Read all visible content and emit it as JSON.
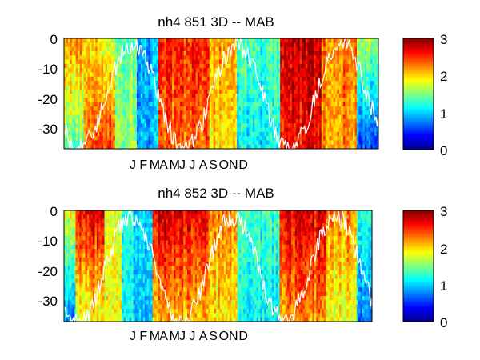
{
  "chart_data": [
    {
      "type": "heatmap",
      "title": "nh4  851 3D   -- MAB",
      "xlabel": "",
      "ylabel": "",
      "ylim": [
        -37,
        0
      ],
      "yticks": [
        0,
        -10,
        -20,
        -30
      ],
      "xtick_labels": [
        "J",
        "F",
        "M",
        "A",
        "M",
        "J",
        "J",
        "A",
        "S",
        "O",
        "N",
        "D"
      ],
      "colorbar": {
        "ticks": [
          0,
          1,
          2,
          3
        ],
        "clim": [
          0,
          3
        ],
        "colormap": "jet"
      },
      "overlay": "mixed-layer-depth line (white)",
      "value_blocks": [
        {
          "t0": 0.0,
          "t1": 0.06,
          "surface": 2.2,
          "deep": 1.4
        },
        {
          "t0": 0.06,
          "t1": 0.11,
          "surface": 2.0,
          "deep": 2.4
        },
        {
          "t0": 0.11,
          "t1": 0.16,
          "surface": 1.8,
          "deep": 2.5
        },
        {
          "t0": 0.16,
          "t1": 0.23,
          "surface": 1.4,
          "deep": 1.6
        },
        {
          "t0": 0.23,
          "t1": 0.3,
          "surface": 0.9,
          "deep": 0.9
        },
        {
          "t0": 0.3,
          "t1": 0.46,
          "surface": 2.5,
          "deep": 2.3
        },
        {
          "t0": 0.46,
          "t1": 0.55,
          "surface": 2.2,
          "deep": 2.0
        },
        {
          "t0": 0.55,
          "t1": 0.69,
          "surface": 1.3,
          "deep": 1.1
        },
        {
          "t0": 0.69,
          "t1": 0.82,
          "surface": 2.8,
          "deep": 2.6
        },
        {
          "t0": 0.82,
          "t1": 0.93,
          "surface": 2.3,
          "deep": 2.2
        },
        {
          "t0": 0.93,
          "t1": 1.0,
          "surface": 1.6,
          "deep": 0.6
        }
      ]
    },
    {
      "type": "heatmap",
      "title": "nh4  852 3D   -- MAB",
      "xlabel": "",
      "ylabel": "",
      "ylim": [
        -37,
        0
      ],
      "yticks": [
        0,
        -10,
        -20,
        -30
      ],
      "xtick_labels": [
        "J",
        "F",
        "M",
        "A",
        "M",
        "J",
        "J",
        "A",
        "S",
        "O",
        "N",
        "D"
      ],
      "colorbar": {
        "ticks": [
          0,
          1,
          2,
          3
        ],
        "clim": [
          0,
          3
        ],
        "colormap": "jet"
      },
      "overlay": "mixed-layer-depth line (white)",
      "value_blocks": [
        {
          "t0": 0.0,
          "t1": 0.04,
          "surface": 1.8,
          "deep": 0.8
        },
        {
          "t0": 0.04,
          "t1": 0.13,
          "surface": 2.7,
          "deep": 1.8
        },
        {
          "t0": 0.13,
          "t1": 0.19,
          "surface": 1.8,
          "deep": 1.9
        },
        {
          "t0": 0.19,
          "t1": 0.29,
          "surface": 1.1,
          "deep": 1.0
        },
        {
          "t0": 0.29,
          "t1": 0.47,
          "surface": 2.7,
          "deep": 2.1
        },
        {
          "t0": 0.47,
          "t1": 0.56,
          "surface": 2.2,
          "deep": 1.9
        },
        {
          "t0": 0.56,
          "t1": 0.7,
          "surface": 1.3,
          "deep": 1.1
        },
        {
          "t0": 0.7,
          "t1": 0.85,
          "surface": 2.7,
          "deep": 2.2
        },
        {
          "t0": 0.85,
          "t1": 0.95,
          "surface": 2.2,
          "deep": 1.8
        },
        {
          "t0": 0.95,
          "t1": 1.0,
          "surface": 1.3,
          "deep": 0.8
        }
      ]
    }
  ]
}
